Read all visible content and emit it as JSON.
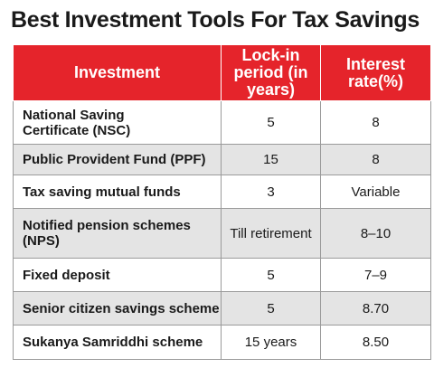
{
  "title": "Best Investment Tools For Tax Savings",
  "colors": {
    "header_bg": "#e5242b",
    "row_alt": "#e4e4e4"
  },
  "columns": [
    "Investment",
    "Lock-in period (in years)",
    "Interest rate(%)"
  ],
  "rows": [
    {
      "investment": "National Saving Certificate (NSC)",
      "lockin": "5",
      "rate": "8"
    },
    {
      "investment": "Public Provident Fund (PPF)",
      "lockin": "15",
      "rate": "8"
    },
    {
      "investment": "Tax saving mutual funds",
      "lockin": "3",
      "rate": "Variable"
    },
    {
      "investment": "Notified pension schemes (NPS)",
      "lockin": "Till retirement",
      "rate": "8–10"
    },
    {
      "investment": "Fixed deposit",
      "lockin": "5",
      "rate": "7–9"
    },
    {
      "investment": "Senior citizen savings scheme",
      "lockin": "5",
      "rate": "8.70"
    },
    {
      "investment": "Sukanya Samriddhi scheme",
      "lockin": "15 years",
      "rate": "8.50"
    }
  ]
}
